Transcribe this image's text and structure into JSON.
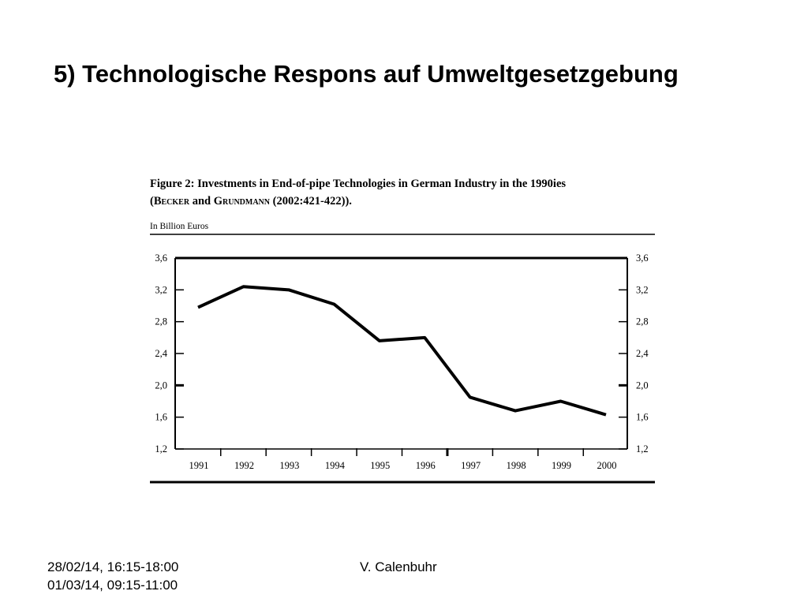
{
  "slide": {
    "title": "5) Technologische Respons auf Umweltgesetzgebung"
  },
  "figure": {
    "caption_line1": "Figure 2: Investments in End-of-pipe Technologies in German Industry in the 1990ies",
    "caption_open": "(",
    "caption_author1": "Becker",
    "caption_and": " and ",
    "caption_author2": "Grundmann",
    "caption_ref": " (2002:421-422)).",
    "unit_label": "In Billion Euros"
  },
  "chart_data": {
    "type": "line",
    "title": "Figure 2: Investments in End-of-pipe Technologies in German Industry in the 1990ies",
    "xlabel": "",
    "ylabel": "In Billion Euros",
    "categories": [
      "1991",
      "1992",
      "1993",
      "1994",
      "1995",
      "1996",
      "1997",
      "1998",
      "1999",
      "2000"
    ],
    "x": [
      1991,
      1992,
      1993,
      1994,
      1995,
      1996,
      1997,
      1998,
      1999,
      2000
    ],
    "series": [
      {
        "values": [
          2.98,
          3.24,
          3.2,
          3.02,
          2.56,
          2.6,
          1.85,
          1.68,
          1.8,
          1.63
        ]
      }
    ],
    "ylim": [
      1.2,
      3.6
    ],
    "yticks": [
      "1,2",
      "1,6",
      "2,0",
      "2,4",
      "2,8",
      "3,2",
      "3,6"
    ],
    "yticks_right": [
      "1,2",
      "1,6",
      "2,0",
      "2,4",
      "2,8",
      "3,2",
      "3,6"
    ],
    "grid": false,
    "legend": "none",
    "line_color": "#000000"
  },
  "footer": {
    "date1": "28/02/14, 16:15-18:00",
    "date2": "01/03/14, 09:15-11:00",
    "author": "V. Calenbuhr"
  }
}
